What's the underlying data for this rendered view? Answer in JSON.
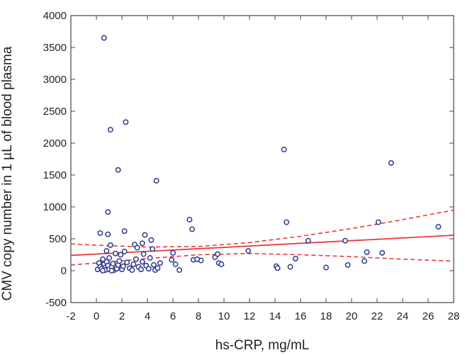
{
  "chart_data": {
    "type": "scatter",
    "title": "",
    "xlabel": "hs-CRP, mg/mL",
    "ylabel": "CMV copy number in 1 µL of blood plasma",
    "xlim": [
      -2,
      28
    ],
    "ylim": [
      -500,
      4000
    ],
    "x_ticks": [
      -2,
      0,
      2,
      4,
      6,
      8,
      10,
      12,
      14,
      16,
      18,
      20,
      22,
      24,
      26,
      28
    ],
    "y_ticks": [
      -500,
      0,
      500,
      1000,
      1500,
      2000,
      2500,
      3000,
      3500,
      4000
    ],
    "grid": false,
    "colors": {
      "points": "#2a3a8c",
      "fit_line": "#e8383a",
      "confidence_band": "#e8383a"
    },
    "series": [
      {
        "points": [
          [
            0.6,
            3650
          ],
          [
            1.1,
            2210
          ],
          [
            2.3,
            2330
          ],
          [
            1.7,
            1580
          ],
          [
            4.7,
            1410
          ],
          [
            14.7,
            1900
          ],
          [
            23.1,
            1690
          ],
          [
            0.9,
            920
          ],
          [
            7.3,
            800
          ],
          [
            7.5,
            650
          ],
          [
            14.9,
            760
          ],
          [
            22.1,
            760
          ],
          [
            26.8,
            690
          ],
          [
            0.3,
            590
          ],
          [
            2.2,
            620
          ],
          [
            3.8,
            560
          ],
          [
            4.3,
            480
          ],
          [
            0.9,
            570
          ],
          [
            1.1,
            400
          ],
          [
            3.0,
            410
          ],
          [
            3.6,
            430
          ],
          [
            3.2,
            360
          ],
          [
            4.4,
            340
          ],
          [
            0.8,
            310
          ],
          [
            2.2,
            300
          ],
          [
            1.5,
            270
          ],
          [
            3.7,
            260
          ],
          [
            5.0,
            120
          ],
          [
            6.0,
            280
          ],
          [
            5.9,
            170
          ],
          [
            7.6,
            170
          ],
          [
            8.2,
            160
          ],
          [
            7.9,
            180
          ],
          [
            9.3,
            210
          ],
          [
            9.5,
            260
          ],
          [
            9.6,
            120
          ],
          [
            9.8,
            100
          ],
          [
            11.9,
            310
          ],
          [
            14.1,
            70
          ],
          [
            14.2,
            40
          ],
          [
            15.2,
            60
          ],
          [
            15.6,
            190
          ],
          [
            16.6,
            470
          ],
          [
            18.0,
            50
          ],
          [
            19.5,
            470
          ],
          [
            19.7,
            90
          ],
          [
            21.0,
            150
          ],
          [
            21.2,
            290
          ],
          [
            22.4,
            280
          ],
          [
            0.1,
            20
          ],
          [
            0.2,
            120
          ],
          [
            0.3,
            60
          ],
          [
            0.4,
            30
          ],
          [
            0.5,
            180
          ],
          [
            0.6,
            100
          ],
          [
            0.7,
            50
          ],
          [
            0.7,
            10
          ],
          [
            0.8,
            140
          ],
          [
            0.9,
            80
          ],
          [
            1.0,
            20
          ],
          [
            1.0,
            200
          ],
          [
            1.2,
            60
          ],
          [
            1.3,
            110
          ],
          [
            1.4,
            10
          ],
          [
            1.6,
            30
          ],
          [
            1.7,
            90
          ],
          [
            1.8,
            150
          ],
          [
            2.0,
            20
          ],
          [
            2.1,
            70
          ],
          [
            2.4,
            130
          ],
          [
            2.6,
            40
          ],
          [
            2.8,
            10
          ],
          [
            2.9,
            100
          ],
          [
            3.1,
            180
          ],
          [
            3.3,
            60
          ],
          [
            3.5,
            20
          ],
          [
            3.6,
            140
          ],
          [
            3.9,
            80
          ],
          [
            4.1,
            30
          ],
          [
            4.2,
            200
          ],
          [
            4.5,
            90
          ],
          [
            4.6,
            10
          ],
          [
            4.8,
            40
          ],
          [
            6.2,
            100
          ],
          [
            6.5,
            10
          ],
          [
            0.5,
            0
          ],
          [
            1.2,
            0
          ],
          [
            1.9,
            250
          ]
        ]
      }
    ],
    "fit_line": {
      "x": [
        -2,
        28
      ],
      "y": [
        240,
        555
      ]
    },
    "confidence_band": {
      "upper": {
        "x": [
          -2,
          0,
          4,
          8,
          12,
          16,
          20,
          24,
          28
        ],
        "y": [
          420,
          400,
          370,
          380,
          440,
          540,
          660,
          800,
          950
        ]
      },
      "lower": {
        "x": [
          -2,
          0,
          4,
          8,
          12,
          16,
          20,
          24,
          28
        ],
        "y": [
          90,
          120,
          190,
          250,
          270,
          250,
          220,
          180,
          150
        ]
      }
    }
  }
}
